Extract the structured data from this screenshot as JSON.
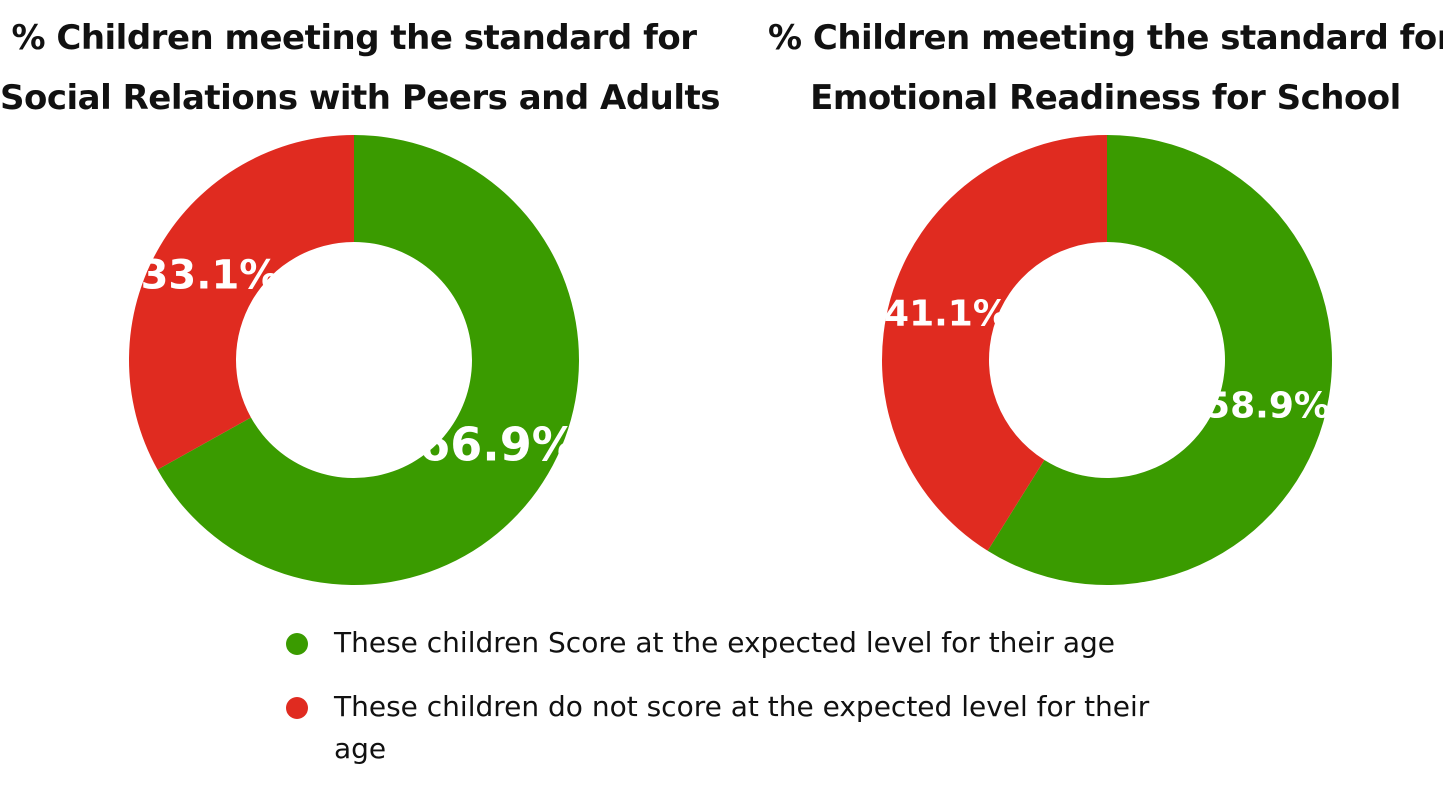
{
  "chart_data": [
    {
      "type": "pie",
      "title_lines": [
        "% Children meeting the standard for",
        "Social Relations with Peers and Adults"
      ],
      "categories": [
        "These children Score at the expected level for their age",
        "These children do not score at the expected level for their age"
      ],
      "values": [
        66.9,
        33.1
      ],
      "data_labels": [
        "66.9%",
        "33.1%"
      ],
      "colors": [
        "#3a9b00",
        "#e02b20"
      ],
      "donut": true
    },
    {
      "type": "pie",
      "title_lines": [
        "% Children meeting the standard for",
        "Emotional Readiness for School"
      ],
      "categories": [
        "These children Score at the expected level for their age",
        "These children do not score at the expected level for their age"
      ],
      "values": [
        58.9,
        41.1
      ],
      "data_labels": [
        "58.9%",
        "41.1%"
      ],
      "colors": [
        "#3a9b00",
        "#e02b20"
      ],
      "donut": true
    }
  ],
  "legend": {
    "placement": "bottom",
    "items": [
      {
        "label": "These children Score at the expected level for their age",
        "color": "#3a9b00"
      },
      {
        "label": "These children do not score at the expected level for their age",
        "color": "#e02b20"
      }
    ]
  }
}
